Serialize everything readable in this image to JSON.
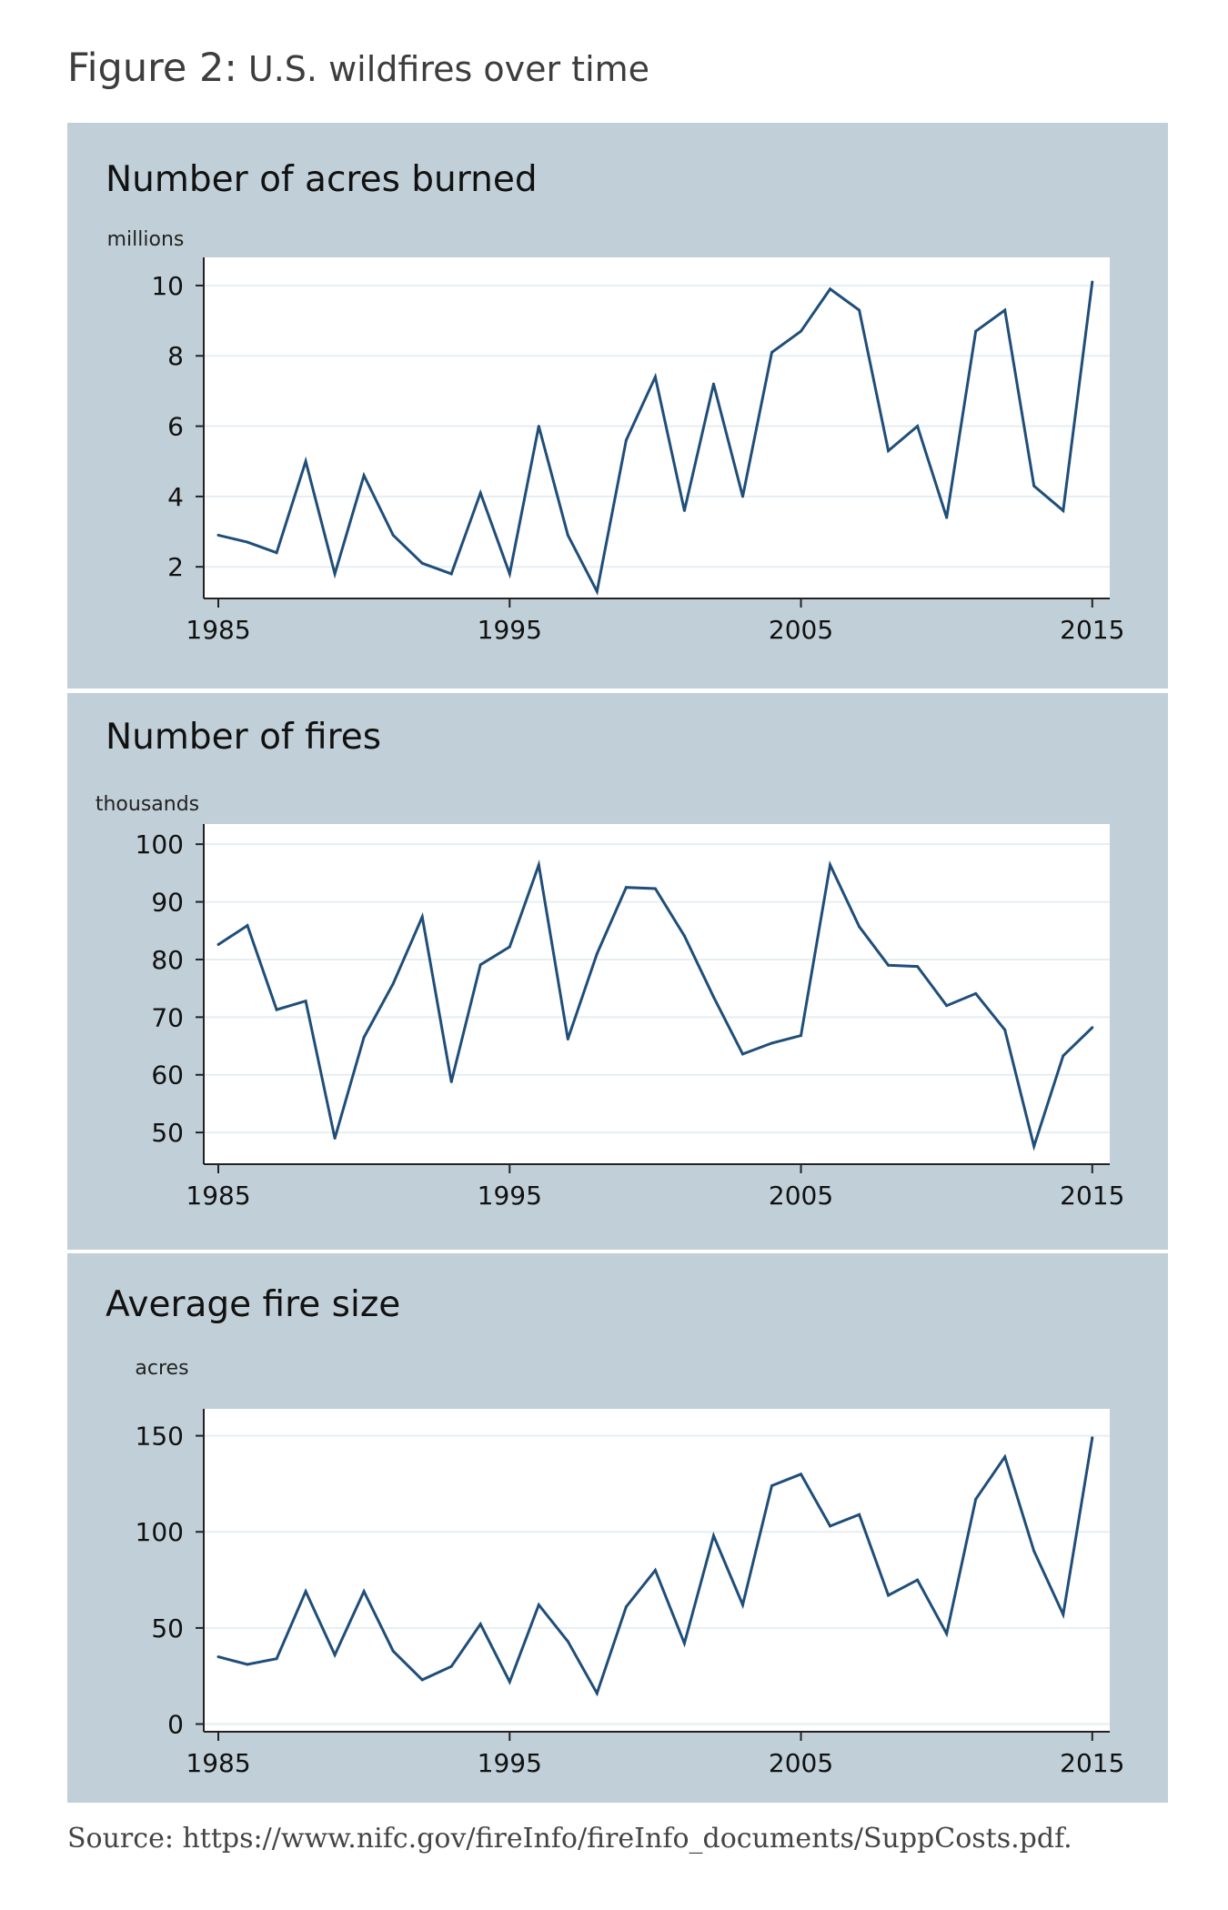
{
  "figure": {
    "title_prefix": "Figure 2:",
    "title_rest": " U.S. wildfires over time",
    "source": "Source: https://www.nifc.gov/fireInfo/fireInfo_documents/SuppCosts.pdf."
  },
  "colors": {
    "panel_bg": "#c1d0d8",
    "plot_bg": "#ffffff",
    "line": "#1f4e79",
    "grid": "#e6eef2"
  },
  "chart_data": [
    {
      "type": "line",
      "title": "Number of acres burned",
      "ylabel": "millions",
      "xlabel": "",
      "x": [
        1985,
        1986,
        1987,
        1988,
        1989,
        1990,
        1991,
        1992,
        1993,
        1994,
        1995,
        1996,
        1997,
        1998,
        1999,
        2000,
        2001,
        2002,
        2003,
        2004,
        2005,
        2006,
        2007,
        2008,
        2009,
        2010,
        2011,
        2012,
        2013,
        2014,
        2015
      ],
      "series": [
        {
          "values": [
            2.9,
            2.7,
            2.4,
            5.0,
            1.8,
            4.6,
            2.9,
            2.1,
            1.8,
            4.1,
            1.8,
            6.0,
            2.9,
            1.3,
            5.6,
            7.4,
            3.6,
            7.2,
            4.0,
            8.1,
            8.7,
            9.9,
            9.3,
            5.3,
            6.0,
            3.4,
            8.7,
            9.3,
            4.3,
            3.6,
            10.1
          ]
        }
      ],
      "xticks": [
        1985,
        1995,
        2005,
        2015
      ],
      "yticks": [
        2,
        4,
        6,
        8,
        10
      ],
      "xlim": [
        1984.5,
        2015.6
      ],
      "ylim": [
        1.1,
        10.8
      ],
      "grid": true,
      "legend": "none"
    },
    {
      "type": "line",
      "title": "Number of fires",
      "ylabel": "thousands",
      "xlabel": "",
      "x": [
        1985,
        1986,
        1987,
        1988,
        1989,
        1990,
        1991,
        1992,
        1993,
        1994,
        1995,
        1996,
        1997,
        1998,
        1999,
        2000,
        2001,
        2002,
        2003,
        2004,
        2005,
        2006,
        2007,
        2008,
        2009,
        2010,
        2011,
        2012,
        2013,
        2014,
        2015
      ],
      "series": [
        {
          "values": [
            82.6,
            85.9,
            71.3,
            72.8,
            49.0,
            66.5,
            75.8,
            87.4,
            58.8,
            79.1,
            82.2,
            96.4,
            66.2,
            81.0,
            92.5,
            92.3,
            84.1,
            73.5,
            63.6,
            65.5,
            66.8,
            96.4,
            85.7,
            79.0,
            78.8,
            72.0,
            74.1,
            67.8,
            47.6,
            63.3,
            68.2
          ]
        }
      ],
      "xticks": [
        1985,
        1995,
        2005,
        2015
      ],
      "yticks": [
        50,
        60,
        70,
        80,
        90,
        100
      ],
      "xlim": [
        1984.5,
        2015.6
      ],
      "ylim": [
        44.5,
        103.5
      ],
      "grid": true,
      "legend": "none"
    },
    {
      "type": "line",
      "title": "Average fire size",
      "ylabel": "acres",
      "xlabel": "",
      "x": [
        1985,
        1986,
        1987,
        1988,
        1989,
        1990,
        1991,
        1992,
        1993,
        1994,
        1995,
        1996,
        1997,
        1998,
        1999,
        2000,
        2001,
        2002,
        2003,
        2004,
        2005,
        2006,
        2007,
        2008,
        2009,
        2010,
        2011,
        2012,
        2013,
        2014,
        2015
      ],
      "series": [
        {
          "values": [
            35,
            31,
            34,
            69,
            36,
            69,
            38,
            23,
            30,
            52,
            22,
            62,
            43,
            16,
            61,
            80,
            42,
            98,
            62,
            124,
            130,
            103,
            109,
            67,
            75,
            47,
            117,
            139,
            90,
            57,
            149
          ]
        }
      ],
      "xticks": [
        1985,
        1995,
        2005,
        2015
      ],
      "yticks": [
        0,
        50,
        100,
        150
      ],
      "xlim": [
        1984.5,
        2015.6
      ],
      "ylim": [
        -4,
        164
      ],
      "grid": true,
      "legend": "none"
    }
  ]
}
